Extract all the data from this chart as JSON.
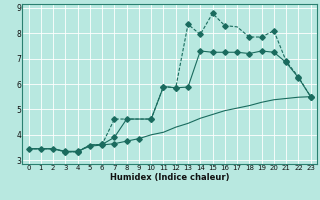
{
  "xlabel": "Humidex (Indice chaleur)",
  "bg_color": "#b8e8e0",
  "grid_color": "#d0eee8",
  "line_color": "#1a6b5e",
  "xlim": [
    -0.5,
    23.5
  ],
  "ylim": [
    2.85,
    9.15
  ],
  "xticks": [
    0,
    1,
    2,
    3,
    4,
    5,
    6,
    7,
    8,
    9,
    10,
    11,
    12,
    13,
    14,
    15,
    16,
    17,
    18,
    19,
    20,
    21,
    22,
    23
  ],
  "yticks": [
    3,
    4,
    5,
    6,
    7,
    8,
    9
  ],
  "curve1_x": [
    0,
    1,
    2,
    3,
    4,
    5,
    6,
    7,
    8,
    9,
    10,
    11,
    12,
    13,
    14,
    15,
    16,
    17,
    18,
    19,
    20,
    21,
    22,
    23
  ],
  "curve1_y": [
    3.45,
    3.45,
    3.45,
    3.35,
    3.35,
    3.55,
    3.6,
    3.65,
    3.75,
    3.85,
    4.0,
    4.1,
    4.3,
    4.45,
    4.65,
    4.8,
    4.95,
    5.05,
    5.15,
    5.28,
    5.38,
    5.43,
    5.48,
    5.5
  ],
  "curve2_x": [
    0,
    1,
    2,
    3,
    4,
    5,
    6,
    7,
    8,
    9,
    10,
    11,
    12,
    13,
    14,
    15,
    16,
    17,
    18,
    19,
    20,
    21,
    22,
    23
  ],
  "curve2_y": [
    3.45,
    3.45,
    3.45,
    3.33,
    3.33,
    3.6,
    3.62,
    3.9,
    4.62,
    4.62,
    4.62,
    5.9,
    5.85,
    5.88,
    7.3,
    7.25,
    7.25,
    7.25,
    7.2,
    7.3,
    7.25,
    6.85,
    6.25,
    5.5
  ],
  "curve3_x": [
    0,
    1,
    2,
    3,
    4,
    5,
    6,
    7,
    8,
    9,
    10,
    11,
    12,
    13,
    14,
    15,
    16,
    17,
    18,
    19,
    20,
    21,
    22,
    23
  ],
  "curve3_y": [
    3.45,
    3.45,
    3.45,
    3.33,
    3.33,
    3.6,
    3.62,
    4.62,
    4.62,
    4.62,
    4.62,
    5.9,
    5.85,
    8.35,
    7.95,
    8.78,
    8.3,
    8.25,
    7.85,
    7.85,
    8.1,
    6.9,
    6.28,
    5.5
  ],
  "curve1_markers_x": [
    0,
    1,
    2,
    3,
    4,
    5,
    6,
    7,
    8,
    9,
    10,
    11,
    12,
    13,
    14,
    15,
    16,
    17,
    18,
    19,
    20,
    21,
    22,
    23
  ],
  "curve2_markers_x": [
    3,
    4,
    6,
    7,
    8,
    11,
    12,
    14,
    19,
    20,
    21,
    22,
    23
  ],
  "curve3_markers_x": [
    3,
    4,
    6,
    7,
    11,
    12,
    13,
    14,
    15,
    16,
    17,
    18,
    20,
    21,
    22,
    23
  ]
}
